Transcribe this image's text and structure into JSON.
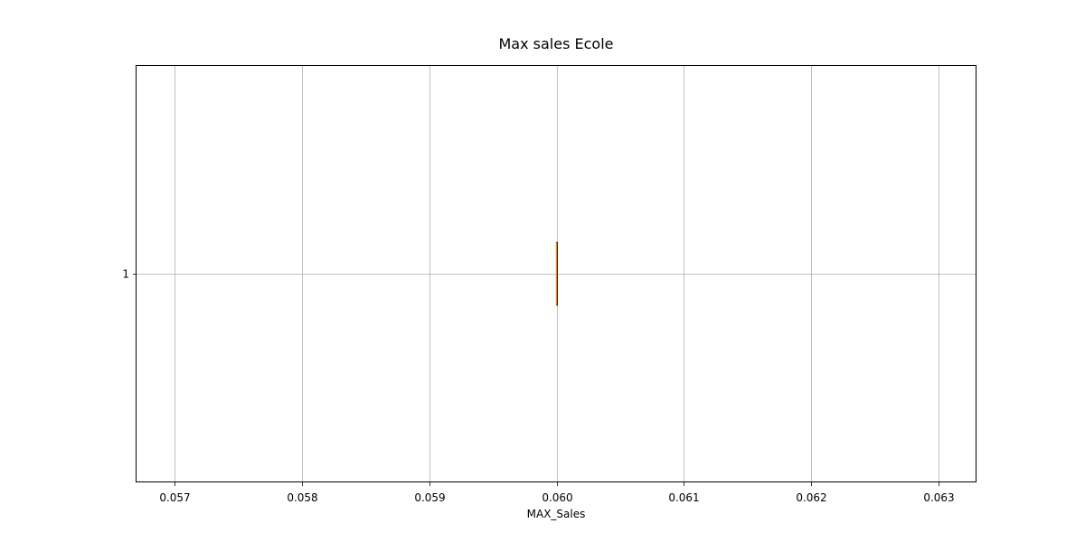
{
  "chart_data": {
    "type": "boxplot",
    "orientation": "horizontal",
    "title": "Max sales Ecole",
    "xlabel": "MAX_Sales",
    "ylabel": "",
    "xlim": [
      0.0567,
      0.0633
    ],
    "xticks": [
      0.057,
      0.058,
      0.059,
      0.06,
      0.061,
      0.062,
      0.063
    ],
    "xtick_labels": [
      "0.057",
      "0.058",
      "0.059",
      "0.060",
      "0.061",
      "0.062",
      "0.063"
    ],
    "ylim": [
      0.5,
      1.5
    ],
    "yticks": [
      1
    ],
    "ytick_labels": [
      "1"
    ],
    "grid": true,
    "boxes": [
      {
        "position": 1,
        "min": 0.06,
        "q1": 0.06,
        "median": 0.06,
        "q3": 0.06,
        "max": 0.06
      }
    ],
    "colors": {
      "box": "#1f77b4",
      "median": "#ff7f0e",
      "grid": "#b0b0b0",
      "axes": "#000000"
    }
  }
}
